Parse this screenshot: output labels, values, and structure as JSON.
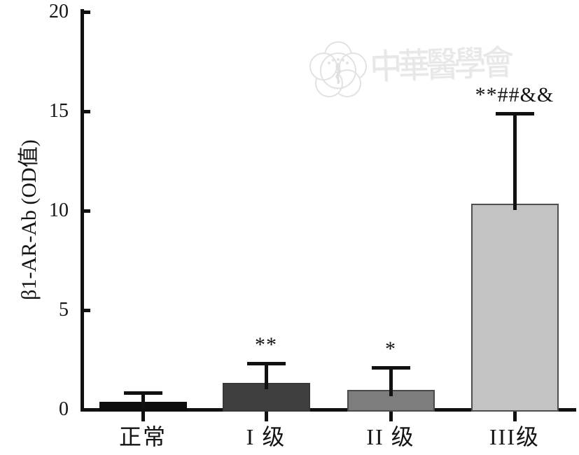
{
  "watermark": {
    "text": "中華醫學會",
    "logo": "chinese-medical-association-emblem",
    "color": "#e5e5e5"
  },
  "chart_data": {
    "type": "bar",
    "title": "",
    "xlabel": "",
    "ylabel": "β1-AR-Ab (OD值)",
    "ylim": [
      0,
      20
    ],
    "yticks": [
      0,
      5,
      10,
      15,
      20
    ],
    "categories": [
      "正常",
      "I 级",
      "II 级",
      "III级"
    ],
    "values": [
      0.4,
      1.35,
      1.0,
      10.35
    ],
    "errors_sd": [
      0.5,
      1.05,
      1.2,
      4.6
    ],
    "annotations": [
      "",
      "**",
      "*",
      "**##&&"
    ],
    "bar_colors": [
      "#0d0d0d",
      "#3f3f3f",
      "#7d7d7d",
      "#c3c3c3"
    ],
    "bar_border_colors": [
      "#0d0d0d",
      "#383838",
      "#4a4a4a",
      "#4f4f4f"
    ],
    "axis_color": "#111111",
    "grid": false,
    "legend": "none"
  }
}
